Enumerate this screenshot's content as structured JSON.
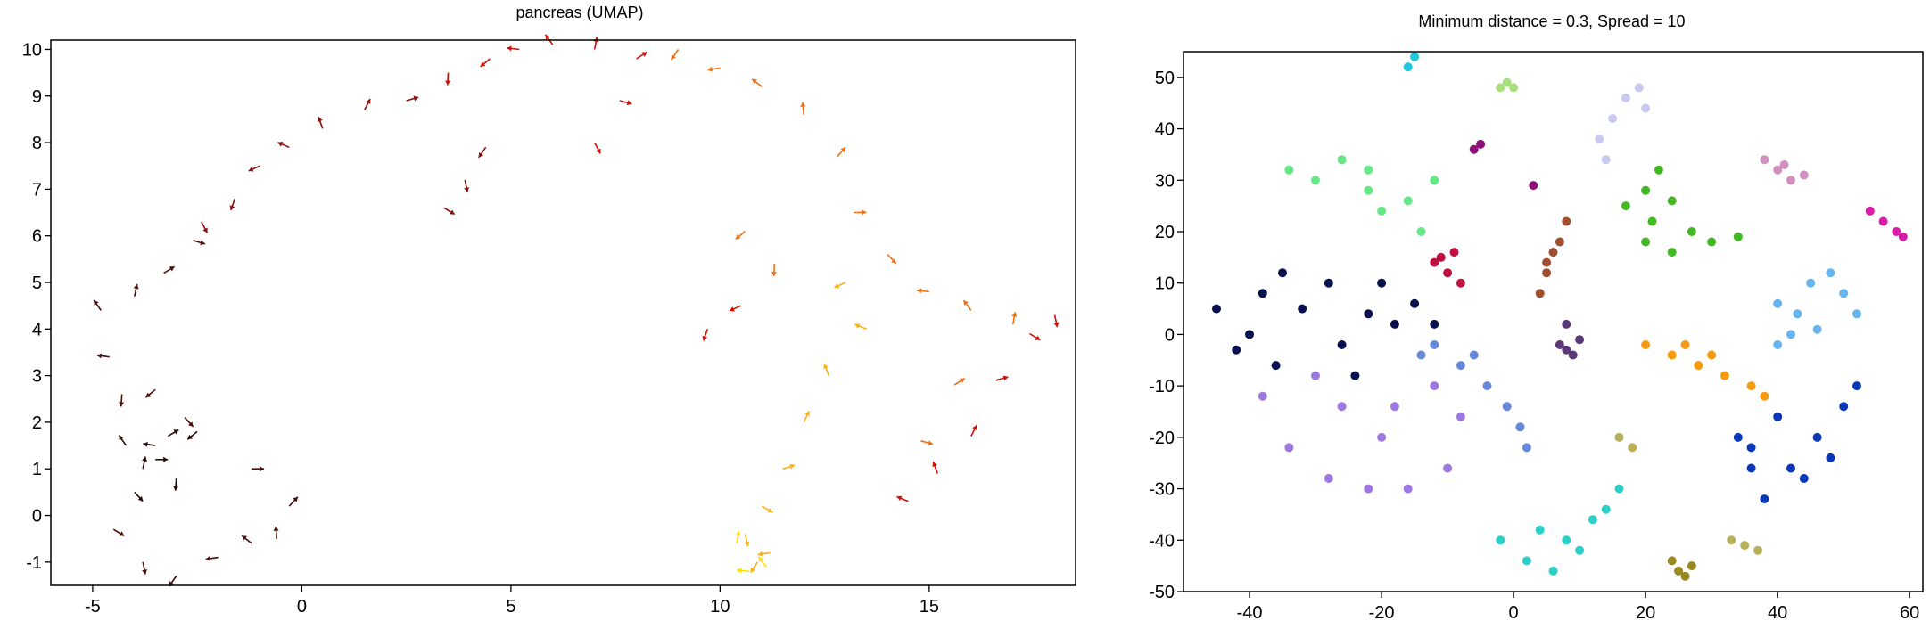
{
  "chart_data": [
    {
      "type": "scatter",
      "title": "pancreas (UMAP)",
      "xlabel": "",
      "ylabel": "",
      "xlim": [
        -6,
        18.5
      ],
      "ylim": [
        -1.5,
        10.2
      ],
      "xticks": [
        -5,
        0,
        5,
        10,
        15
      ],
      "yticks": [
        -1,
        0,
        1,
        2,
        3,
        4,
        5,
        6,
        7,
        8,
        9,
        10
      ],
      "grid": false,
      "legend": "none",
      "colormap": "dark red to yellow",
      "marks": "velocity arrows",
      "series": [
        {
          "color": "#2a0a05",
          "values": [
            [
              -3.5,
              1.2
            ],
            [
              -4.0,
              0.5
            ],
            [
              -3.0,
              0.8
            ],
            [
              -2.5,
              1.8
            ],
            [
              -3.5,
              1.5
            ],
            [
              -4.2,
              1.5
            ],
            [
              -3.8,
              1.0
            ],
            [
              -3.2,
              1.7
            ]
          ]
        },
        {
          "color": "#4a0e0a",
          "values": [
            [
              -4.5,
              -0.3
            ],
            [
              -3.8,
              -1.0
            ],
            [
              -3.0,
              -1.3
            ],
            [
              -2.0,
              -0.9
            ],
            [
              -1.2,
              -0.6
            ],
            [
              -0.6,
              -0.5
            ],
            [
              -0.3,
              0.2
            ],
            [
              -1.2,
              1.0
            ],
            [
              -2.8,
              2.1
            ],
            [
              -4.3,
              2.6
            ],
            [
              -3.5,
              2.7
            ],
            [
              -4.6,
              3.4
            ],
            [
              -4.8,
              4.4
            ],
            [
              -4.0,
              4.7
            ],
            [
              -3.3,
              5.2
            ],
            [
              -2.6,
              5.9
            ]
          ]
        },
        {
          "color": "#8b0f0a",
          "values": [
            [
              -2.4,
              6.3
            ],
            [
              -1.6,
              6.8
            ],
            [
              -1.0,
              7.5
            ],
            [
              -0.3,
              7.9
            ],
            [
              0.5,
              8.3
            ],
            [
              1.5,
              8.7
            ],
            [
              2.5,
              8.9
            ],
            [
              3.4,
              6.6
            ],
            [
              3.9,
              7.2
            ],
            [
              4.4,
              7.9
            ]
          ]
        },
        {
          "color": "#d01008",
          "values": [
            [
              3.5,
              9.5
            ],
            [
              4.5,
              9.8
            ],
            [
              5.2,
              10.0
            ],
            [
              6.0,
              10.1
            ],
            [
              7.0,
              10.0
            ],
            [
              8.0,
              9.8
            ],
            [
              7.6,
              8.9
            ],
            [
              7.0,
              8.0
            ],
            [
              9.7,
              4.0
            ],
            [
              10.5,
              4.5
            ],
            [
              14.5,
              0.3
            ],
            [
              15.2,
              0.9
            ],
            [
              16.0,
              1.7
            ],
            [
              16.6,
              2.9
            ],
            [
              17.4,
              3.9
            ],
            [
              18.0,
              4.3
            ]
          ]
        },
        {
          "color": "#f07010",
          "values": [
            [
              9.0,
              10.0
            ],
            [
              10.0,
              9.6
            ],
            [
              11.0,
              9.2
            ],
            [
              12.0,
              8.6
            ],
            [
              12.8,
              7.7
            ],
            [
              13.2,
              6.5
            ],
            [
              14.0,
              5.6
            ],
            [
              11.3,
              5.4
            ],
            [
              10.6,
              6.1
            ],
            [
              15.0,
              4.8
            ],
            [
              16.0,
              4.4
            ],
            [
              17.0,
              4.1
            ],
            [
              15.6,
              2.8
            ],
            [
              14.8,
              1.6
            ]
          ]
        },
        {
          "color": "#f7b21a",
          "values": [
            [
              13.0,
              5.0
            ],
            [
              13.5,
              4.0
            ],
            [
              12.6,
              3.0
            ],
            [
              12.0,
              2.0
            ],
            [
              11.5,
              1.0
            ],
            [
              11.0,
              0.2
            ],
            [
              10.6,
              -0.4
            ],
            [
              10.9,
              -1.0
            ],
            [
              11.2,
              -0.8
            ]
          ]
        },
        {
          "color": "#ffe000",
          "values": [
            [
              10.7,
              -1.2
            ],
            [
              11.1,
              -1.1
            ],
            [
              10.4,
              -0.6
            ]
          ]
        }
      ]
    },
    {
      "type": "scatter",
      "title": "Minimum distance = 0.3, Spread = 10",
      "xlabel": "",
      "ylabel": "",
      "xlim": [
        -50,
        62
      ],
      "ylim": [
        -50,
        55
      ],
      "xticks": [
        -40,
        -20,
        0,
        20,
        40,
        60
      ],
      "yticks": [
        -50,
        -40,
        -30,
        -20,
        -10,
        0,
        10,
        20,
        30,
        40,
        50
      ],
      "grid": false,
      "legend": "none",
      "series": [
        {
          "color": "#08104e",
          "values": [
            [
              -45,
              5
            ],
            [
              -42,
              -3
            ],
            [
              -38,
              8
            ],
            [
              -35,
              12
            ],
            [
              -32,
              5
            ],
            [
              -28,
              10
            ],
            [
              -26,
              -2
            ],
            [
              -22,
              4
            ],
            [
              -20,
              10
            ],
            [
              -24,
              -8
            ],
            [
              -18,
              2
            ],
            [
              -15,
              6
            ],
            [
              -12,
              2
            ],
            [
              -36,
              -6
            ],
            [
              -40,
              0
            ]
          ]
        },
        {
          "color": "#9c78e0",
          "values": [
            [
              -38,
              -12
            ],
            [
              -34,
              -22
            ],
            [
              -28,
              -28
            ],
            [
              -22,
              -30
            ],
            [
              -16,
              -30
            ],
            [
              -10,
              -26
            ],
            [
              -8,
              -16
            ],
            [
              -12,
              -10
            ],
            [
              -18,
              -14
            ],
            [
              -26,
              -14
            ],
            [
              -30,
              -8
            ],
            [
              -20,
              -20
            ]
          ]
        },
        {
          "color": "#6688d8",
          "values": [
            [
              -12,
              -2
            ],
            [
              -8,
              -6
            ],
            [
              -4,
              -10
            ],
            [
              -1,
              -14
            ],
            [
              1,
              -18
            ],
            [
              2,
              -22
            ],
            [
              -14,
              -4
            ],
            [
              -6,
              -4
            ]
          ]
        },
        {
          "color": "#66e888",
          "values": [
            [
              -34,
              32
            ],
            [
              -30,
              30
            ],
            [
              -26,
              34
            ],
            [
              -22,
              32
            ],
            [
              -20,
              24
            ],
            [
              -16,
              26
            ],
            [
              -14,
              20
            ],
            [
              -12,
              30
            ],
            [
              -22,
              28
            ]
          ]
        },
        {
          "color": "#1ec8dc",
          "values": [
            [
              -16,
              52
            ],
            [
              -15,
              54
            ]
          ]
        },
        {
          "color": "#c01040",
          "values": [
            [
              -12,
              14
            ],
            [
              -10,
              12
            ],
            [
              -8,
              10
            ],
            [
              -9,
              16
            ],
            [
              -11,
              15
            ]
          ]
        },
        {
          "color": "#90107a",
          "values": [
            [
              -6,
              36
            ],
            [
              -5,
              37
            ],
            [
              3,
              29
            ]
          ]
        },
        {
          "color": "#a05030",
          "values": [
            [
              4,
              8
            ],
            [
              5,
              12
            ],
            [
              6,
              16
            ],
            [
              7,
              18
            ],
            [
              8,
              22
            ],
            [
              5,
              14
            ]
          ]
        },
        {
          "color": "#5a3878",
          "values": [
            [
              7,
              -2
            ],
            [
              8,
              2
            ],
            [
              9,
              -4
            ],
            [
              10,
              -1
            ],
            [
              8,
              -3
            ]
          ]
        },
        {
          "color": "#c8c8f0",
          "values": [
            [
              13,
              38
            ],
            [
              15,
              42
            ],
            [
              17,
              46
            ],
            [
              19,
              48
            ],
            [
              20,
              44
            ],
            [
              14,
              34
            ]
          ]
        },
        {
          "color": "#44b824",
          "values": [
            [
              17,
              25
            ],
            [
              20,
              28
            ],
            [
              22,
              32
            ],
            [
              24,
              26
            ],
            [
              27,
              20
            ],
            [
              30,
              18
            ],
            [
              34,
              19
            ],
            [
              24,
              16
            ],
            [
              21,
              22
            ],
            [
              20,
              18
            ]
          ]
        },
        {
          "color": "#d090c0",
          "values": [
            [
              38,
              34
            ],
            [
              40,
              32
            ],
            [
              42,
              30
            ],
            [
              44,
              31
            ],
            [
              41,
              33
            ]
          ]
        },
        {
          "color": "#d81ca8",
          "values": [
            [
              54,
              24
            ],
            [
              56,
              22
            ],
            [
              58,
              20
            ],
            [
              59,
              19
            ]
          ]
        },
        {
          "color": "#66b4f0",
          "values": [
            [
              40,
              6
            ],
            [
              43,
              4
            ],
            [
              45,
              10
            ],
            [
              48,
              12
            ],
            [
              50,
              8
            ],
            [
              52,
              4
            ],
            [
              46,
              1
            ],
            [
              42,
              0
            ],
            [
              40,
              -2
            ]
          ]
        },
        {
          "color": "#f89a10",
          "values": [
            [
              20,
              -2
            ],
            [
              24,
              -4
            ],
            [
              28,
              -6
            ],
            [
              32,
              -8
            ],
            [
              36,
              -10
            ],
            [
              38,
              -12
            ],
            [
              26,
              -2
            ],
            [
              30,
              -4
            ]
          ]
        },
        {
          "color": "#0838b8",
          "values": [
            [
              34,
              -20
            ],
            [
              36,
              -26
            ],
            [
              38,
              -32
            ],
            [
              42,
              -26
            ],
            [
              46,
              -20
            ],
            [
              50,
              -14
            ],
            [
              52,
              -10
            ],
            [
              44,
              -28
            ],
            [
              40,
              -16
            ],
            [
              48,
              -24
            ],
            [
              36,
              -22
            ]
          ]
        },
        {
          "color": "#2cd0c8",
          "values": [
            [
              -2,
              -40
            ],
            [
              2,
              -44
            ],
            [
              6,
              -46
            ],
            [
              10,
              -42
            ],
            [
              14,
              -34
            ],
            [
              16,
              -30
            ],
            [
              12,
              -36
            ],
            [
              8,
              -40
            ],
            [
              4,
              -38
            ]
          ]
        },
        {
          "color": "#b8b05a",
          "values": [
            [
              33,
              -40
            ],
            [
              35,
              -41
            ],
            [
              37,
              -42
            ],
            [
              16,
              -20
            ],
            [
              18,
              -22
            ]
          ]
        },
        {
          "color": "#988820",
          "values": [
            [
              24,
              -44
            ],
            [
              25,
              -46
            ],
            [
              26,
              -47
            ],
            [
              27,
              -45
            ]
          ]
        },
        {
          "color": "#a8e080",
          "values": [
            [
              -2,
              48
            ],
            [
              -1,
              49
            ],
            [
              0,
              48
            ]
          ]
        }
      ]
    }
  ]
}
